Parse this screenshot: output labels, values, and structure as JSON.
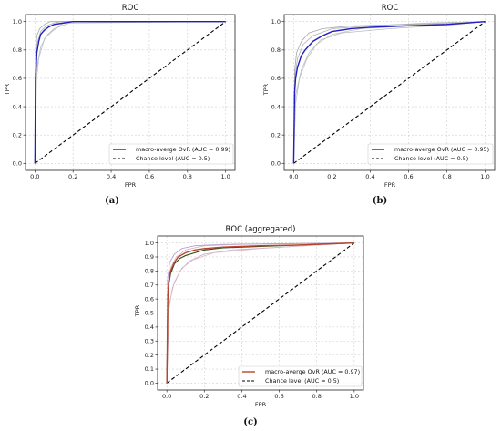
{
  "chart_data": [
    {
      "type": "line",
      "panel": "(a)",
      "title": "ROC",
      "xlabel": "FPR",
      "ylabel": "TPR",
      "xlim": [
        0,
        1
      ],
      "ylim": [
        0,
        1
      ],
      "grid": true,
      "legend_position": "bottom-right",
      "xticks": [
        "0.0",
        "0.2",
        "0.4",
        "0.6",
        "0.8",
        "1.0"
      ],
      "yticks": [
        "0.0",
        "0.2",
        "0.4",
        "0.6",
        "0.8",
        "1.0"
      ],
      "series": [
        {
          "name": "macro-averge OvR (AUC = 0.99)",
          "color": "#1f1fbf",
          "style": "solid",
          "x": [
            0,
            0.003,
            0.01,
            0.02,
            0.03,
            0.05,
            0.07,
            0.1,
            0.15,
            0.2,
            1.0
          ],
          "y": [
            0,
            0.6,
            0.78,
            0.86,
            0.91,
            0.94,
            0.96,
            0.98,
            0.99,
            1.0,
            1.0
          ]
        },
        {
          "name": "Chance level (AUC = 0.5)",
          "color": "#000000",
          "style": "dashed",
          "x": [
            0,
            1
          ],
          "y": [
            0,
            1
          ]
        }
      ],
      "class_curves": [
        {
          "x": [
            0,
            0.005,
            0.01,
            0.03,
            0.06,
            0.1,
            0.14,
            1
          ],
          "y": [
            0,
            0.72,
            0.84,
            0.93,
            0.97,
            0.99,
            1.0,
            1.0
          ]
        },
        {
          "x": [
            0,
            0.005,
            0.02,
            0.05,
            0.09,
            0.13,
            0.16,
            1
          ],
          "y": [
            0,
            0.55,
            0.74,
            0.88,
            0.93,
            0.97,
            1.0,
            1.0
          ]
        },
        {
          "x": [
            0,
            0.003,
            0.01,
            0.025,
            0.05,
            0.08,
            1
          ],
          "y": [
            0,
            0.78,
            0.9,
            0.95,
            0.98,
            1.0,
            1.0
          ]
        },
        {
          "x": [
            0,
            0.01,
            0.03,
            0.06,
            0.1,
            0.18,
            1
          ],
          "y": [
            0,
            0.68,
            0.82,
            0.9,
            0.95,
            0.99,
            1.0
          ]
        }
      ]
    },
    {
      "type": "line",
      "panel": "(b)",
      "title": "ROC",
      "xlabel": "FPR",
      "ylabel": "TPR",
      "xlim": [
        0,
        1
      ],
      "ylim": [
        0,
        1
      ],
      "grid": true,
      "legend_position": "bottom-right",
      "xticks": [
        "0.0",
        "0.2",
        "0.4",
        "0.6",
        "0.8",
        "1.0"
      ],
      "yticks": [
        "0.0",
        "0.2",
        "0.4",
        "0.6",
        "0.8",
        "1.0"
      ],
      "series": [
        {
          "name": "macro-averge OvR (AUC = 0.95)",
          "color": "#1f1fbf",
          "style": "solid",
          "x": [
            0,
            0.005,
            0.01,
            0.02,
            0.04,
            0.06,
            0.1,
            0.15,
            0.2,
            0.3,
            0.4,
            0.5,
            0.6,
            0.8,
            0.95,
            1.0
          ],
          "y": [
            0,
            0.5,
            0.6,
            0.68,
            0.76,
            0.8,
            0.86,
            0.9,
            0.93,
            0.95,
            0.96,
            0.965,
            0.97,
            0.98,
            0.995,
            1.0
          ]
        },
        {
          "name": "Chance level (AUC = 0.5)",
          "color": "#000000",
          "style": "dashed",
          "x": [
            0,
            1
          ],
          "y": [
            0,
            1
          ]
        }
      ],
      "class_curves": [
        {
          "x": [
            0,
            0.005,
            0.02,
            0.05,
            0.1,
            0.2,
            0.4,
            0.7,
            1
          ],
          "y": [
            0,
            0.6,
            0.74,
            0.84,
            0.9,
            0.95,
            0.97,
            0.99,
            1.0
          ]
        },
        {
          "x": [
            0,
            0.01,
            0.03,
            0.07,
            0.12,
            0.2,
            0.35,
            0.6,
            1
          ],
          "y": [
            0,
            0.42,
            0.6,
            0.74,
            0.84,
            0.91,
            0.95,
            0.97,
            1.0
          ]
        },
        {
          "x": [
            0,
            0.005,
            0.015,
            0.04,
            0.08,
            0.15,
            0.3,
            0.9,
            1
          ],
          "y": [
            0,
            0.65,
            0.78,
            0.86,
            0.92,
            0.95,
            0.97,
            0.99,
            1.0
          ]
        },
        {
          "x": [
            0,
            0.01,
            0.04,
            0.08,
            0.14,
            0.25,
            0.5,
            0.85,
            1
          ],
          "y": [
            0,
            0.48,
            0.66,
            0.78,
            0.87,
            0.92,
            0.95,
            0.98,
            1.0
          ]
        }
      ]
    },
    {
      "type": "line",
      "panel": "(c)",
      "title": "ROC (aggregated)",
      "xlabel": "FPR",
      "ylabel": "TPR",
      "xlim": [
        0,
        1
      ],
      "ylim": [
        0,
        1
      ],
      "grid": true,
      "legend_position": "bottom-right",
      "xticks": [
        "0.0",
        "0.2",
        "0.4",
        "0.6",
        "0.8",
        "1.0"
      ],
      "yticks": [
        "0.0",
        "0.1",
        "0.2",
        "0.3",
        "0.4",
        "0.5",
        "0.6",
        "0.7",
        "0.8",
        "0.9",
        "1.0"
      ],
      "series": [
        {
          "name": "macro-averge OvR (AUC = 0.97)",
          "color": "#b5462c",
          "style": "solid",
          "x": [
            0,
            0.005,
            0.01,
            0.02,
            0.04,
            0.06,
            0.1,
            0.15,
            0.2,
            0.3,
            0.5,
            0.7,
            0.9,
            1.0
          ],
          "y": [
            0,
            0.62,
            0.72,
            0.8,
            0.86,
            0.9,
            0.93,
            0.95,
            0.96,
            0.97,
            0.98,
            0.985,
            0.995,
            1.0
          ]
        },
        {
          "name": "Chance level (AUC = 0.5)",
          "color": "#000000",
          "style": "dashed",
          "x": [
            0,
            1
          ],
          "y": [
            0,
            1
          ]
        }
      ],
      "class_curves": [
        {
          "x": [
            0,
            0.005,
            0.02,
            0.05,
            0.1,
            0.2,
            0.4,
            1
          ],
          "y": [
            0,
            0.7,
            0.82,
            0.9,
            0.95,
            0.98,
            0.99,
            1.0
          ]
        },
        {
          "x": [
            0,
            0.01,
            0.03,
            0.07,
            0.12,
            0.2,
            0.35,
            1
          ],
          "y": [
            0,
            0.52,
            0.68,
            0.8,
            0.87,
            0.92,
            0.95,
            1.0
          ]
        },
        {
          "x": [
            0,
            0.004,
            0.015,
            0.04,
            0.08,
            0.15,
            0.3,
            1
          ],
          "y": [
            0,
            0.74,
            0.86,
            0.92,
            0.96,
            0.98,
            0.99,
            1.0
          ]
        },
        {
          "x": [
            0,
            0.01,
            0.04,
            0.08,
            0.14,
            0.25,
            0.5,
            1
          ],
          "y": [
            0,
            0.55,
            0.72,
            0.82,
            0.88,
            0.93,
            0.96,
            1.0
          ]
        }
      ],
      "aggregate_curve": {
        "color": "#2a4a1a",
        "x": [
          0,
          0.005,
          0.01,
          0.02,
          0.04,
          0.07,
          0.1,
          0.15,
          0.2,
          0.3,
          0.5,
          0.8,
          1.0
        ],
        "y": [
          0,
          0.6,
          0.7,
          0.78,
          0.85,
          0.89,
          0.91,
          0.93,
          0.95,
          0.965,
          0.975,
          0.99,
          1.0
        ]
      }
    }
  ]
}
